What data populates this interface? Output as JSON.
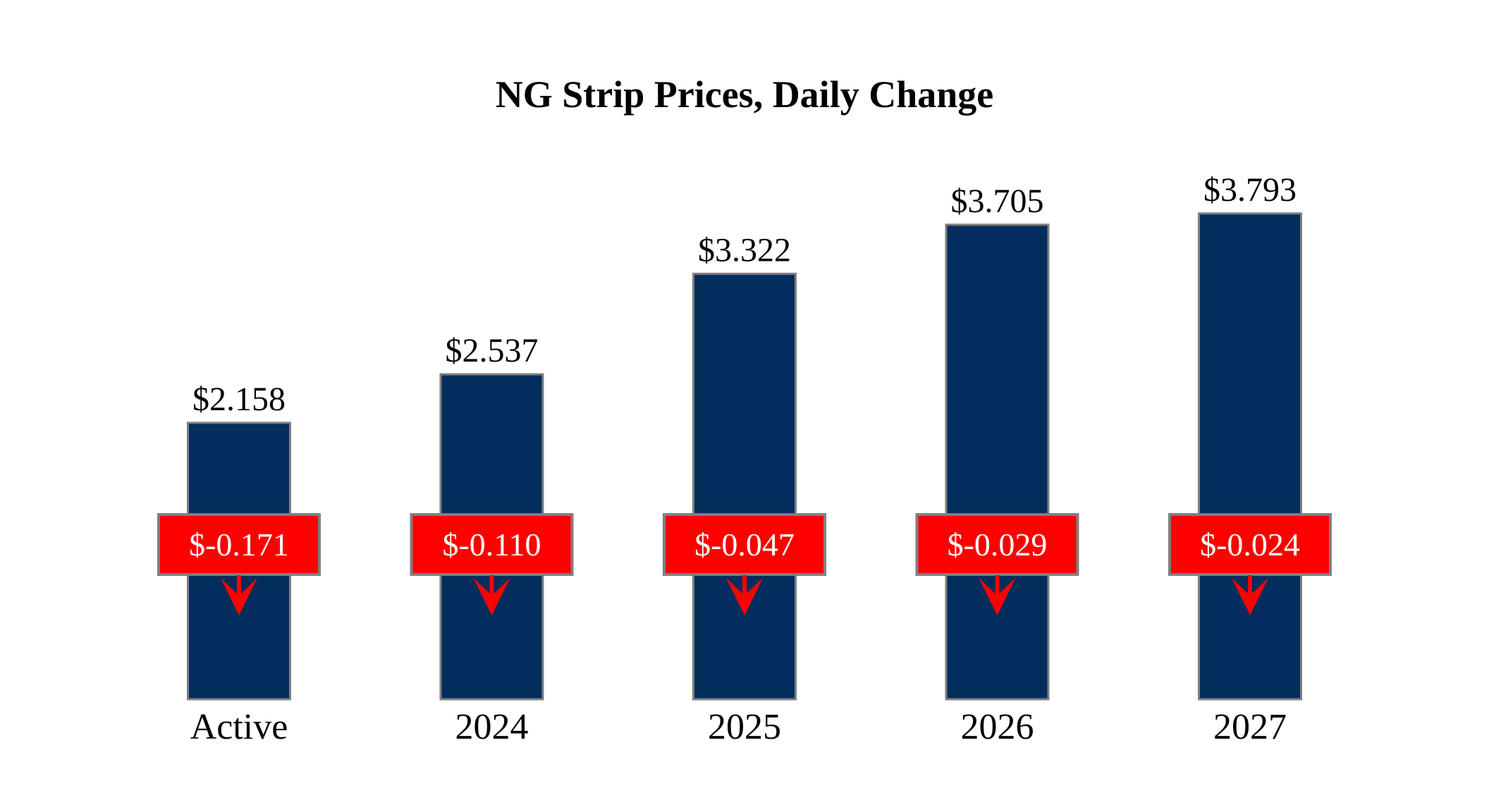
{
  "chart_data": {
    "type": "bar",
    "title": "NG Strip Prices, Daily Change",
    "xlabel": "",
    "ylabel": "",
    "categories": [
      "Active",
      "2024",
      "2025",
      "2026",
      "2027"
    ],
    "values": [
      2.158,
      2.537,
      3.322,
      3.705,
      3.793
    ],
    "value_labels": [
      "$2.158",
      "$2.537",
      "$3.322",
      "$3.705",
      "$3.793"
    ],
    "changes": [
      -0.171,
      -0.11,
      -0.047,
      -0.029,
      -0.024
    ],
    "change_labels": [
      "$-0.171",
      "$-0.110",
      "$-0.047",
      "$-0.029",
      "$-0.024"
    ],
    "change_direction": [
      "down",
      "down",
      "down",
      "down",
      "down"
    ],
    "ylim": [
      0,
      3.793
    ],
    "grid": false,
    "legend": "none",
    "colors": {
      "bar": "#032d5c",
      "bar_border": "#7f7f7f",
      "change_box": "#ff0000",
      "change_text": "#ffffff",
      "arrow": "#ff0000"
    }
  }
}
